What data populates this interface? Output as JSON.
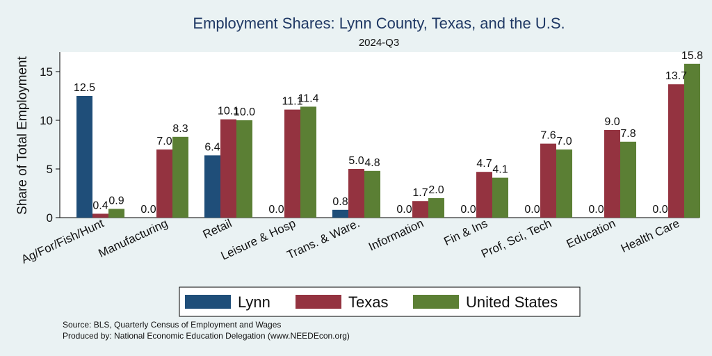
{
  "chart_data": {
    "type": "bar",
    "title": "Employment Shares: Lynn County, Texas, and the U.S.",
    "subtitle": "2024-Q3",
    "xlabel": "",
    "ylabel": "Share of Total Employment",
    "ylim": [
      0,
      17
    ],
    "yticks": [
      0,
      5,
      10,
      15
    ],
    "grid": false,
    "legend_position": "bottom",
    "categories": [
      "Ag/For/Fish/Hunt",
      "Manufacturing",
      "Retail",
      "Leisure & Hosp",
      "Trans. & Ware.",
      "Information",
      "Fin & Ins",
      "Prof, Sci, Tech",
      "Education",
      "Health Care"
    ],
    "series": [
      {
        "name": "Lynn",
        "color": "#1f4e79",
        "values": [
          12.5,
          0.0,
          6.4,
          0.0,
          0.8,
          0.0,
          0.0,
          0.0,
          0.0,
          0.0
        ],
        "labels": [
          "12.5",
          "0.0",
          "6.4",
          "0.0",
          "0.8",
          "0.0",
          "0.0",
          "0.0",
          "0.0",
          "0.0"
        ]
      },
      {
        "name": "Texas",
        "color": "#943340",
        "values": [
          0.4,
          7.0,
          10.1,
          11.1,
          5.0,
          1.7,
          4.7,
          7.6,
          9.0,
          13.7
        ],
        "labels": [
          "0.4",
          "7.0",
          "10.1",
          "11.1",
          "5.0",
          "1.7",
          "4.7",
          "7.6",
          "9.0",
          "13.7"
        ]
      },
      {
        "name": "United States",
        "color": "#5b7f34",
        "values": [
          0.9,
          8.3,
          10.0,
          11.4,
          4.8,
          2.0,
          4.1,
          7.0,
          7.8,
          15.8
        ],
        "labels": [
          "0.9",
          "8.3",
          "10.0",
          "11.4",
          "4.8",
          "2.0",
          "4.1",
          "7.0",
          "7.8",
          "15.8"
        ]
      }
    ],
    "notes": [
      "Source: BLS, Quarterly Census of Employment and Wages",
      "Produced by: National Economic Education Delegation (www.NEEDEcon.org)"
    ]
  }
}
